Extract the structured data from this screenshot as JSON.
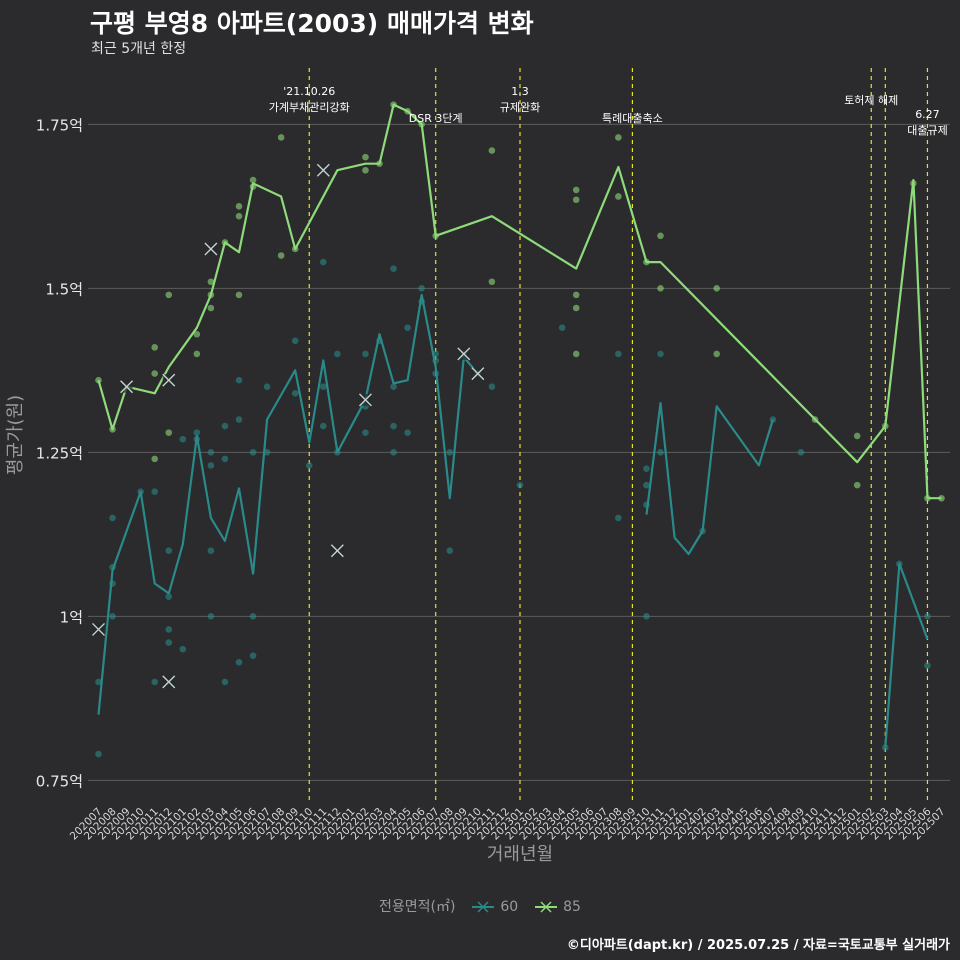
{
  "header": {
    "title": "구평 부영8 아파트(2003) 매매가격 변화",
    "subtitle": "최근 5개년 한정",
    "caption": "©디아파트(dapt.kr) / 2025.07.25 / 자료=국토교통부 실거래가"
  },
  "legend": {
    "title": "전용면적(㎡)",
    "items": [
      {
        "label": "60",
        "color": "#2a8a8a"
      },
      {
        "label": "85",
        "color": "#8edb7a"
      }
    ]
  },
  "chart_data": {
    "type": "line",
    "xlabel": "거래년월",
    "ylabel": "평균가(원)",
    "ylim": [
      0.72,
      1.845
    ],
    "yticks": [
      {
        "value": 0.75,
        "label": "0.75억"
      },
      {
        "value": 1.0,
        "label": "1억"
      },
      {
        "value": 1.25,
        "label": "1.25억"
      },
      {
        "value": 1.5,
        "label": "1.5억"
      },
      {
        "value": 1.75,
        "label": "1.75억"
      }
    ],
    "categories": [
      "202007",
      "202008",
      "202009",
      "202010",
      "202011",
      "202012",
      "202101",
      "202102",
      "202103",
      "202104",
      "202105",
      "202106",
      "202107",
      "202108",
      "202109",
      "202110",
      "202111",
      "202112",
      "202201",
      "202202",
      "202203",
      "202204",
      "202205",
      "202206",
      "202207",
      "202208",
      "202209",
      "202210",
      "202211",
      "202212",
      "202301",
      "202302",
      "202303",
      "202304",
      "202305",
      "202306",
      "202307",
      "202308",
      "202309",
      "202310",
      "202311",
      "202312",
      "202401",
      "202402",
      "202403",
      "202404",
      "202405",
      "202406",
      "202407",
      "202408",
      "202409",
      "202410",
      "202411",
      "202412",
      "202501",
      "202502",
      "202503",
      "202504",
      "202505",
      "202506",
      "202507"
    ],
    "annotations": [
      {
        "x": 15.0,
        "lines": [
          "'21.10.26",
          "가계부채관리강화"
        ],
        "row": 0
      },
      {
        "x": 24.0,
        "lines": [
          "DSR 3단계"
        ],
        "row": 2
      },
      {
        "x": 30.0,
        "lines": [
          "1.3",
          "규제완화"
        ],
        "row": 0
      },
      {
        "x": 38.0,
        "lines": [
          "특례대출축소"
        ],
        "row": 2
      },
      {
        "x": 55.0,
        "lines": [
          "토허제 해제"
        ],
        "row": 1
      },
      {
        "x": 56.0,
        "lines": [],
        "row": 1
      },
      {
        "x": 59.0,
        "lines": [
          "6.27",
          "대출규제"
        ],
        "row": 3
      }
    ],
    "series": [
      {
        "name": "60",
        "color": "#2a8a8a",
        "line": [
          [
            0,
            0.85
          ],
          [
            1,
            1.07
          ],
          [
            3,
            1.19
          ],
          [
            4,
            1.05
          ],
          [
            5,
            1.035
          ],
          [
            6,
            1.11
          ],
          [
            7,
            1.275
          ],
          [
            8,
            1.15
          ],
          [
            9,
            1.115
          ],
          [
            10,
            1.195
          ],
          [
            11,
            1.065
          ],
          [
            12,
            1.3
          ],
          [
            14,
            1.375
          ],
          [
            15,
            1.265
          ],
          [
            16,
            1.39
          ],
          [
            17,
            1.25
          ],
          [
            19,
            1.33
          ],
          [
            20,
            1.43
          ],
          [
            21,
            1.355
          ],
          [
            22,
            1.36
          ],
          [
            23,
            1.49
          ],
          [
            24,
            1.38
          ],
          [
            25,
            1.18
          ],
          [
            26,
            1.395
          ],
          [
            27,
            1.37
          ],
          [
            39,
            1.155
          ],
          [
            40,
            1.325
          ],
          [
            41,
            1.12
          ],
          [
            42,
            1.095
          ],
          [
            43,
            1.13
          ],
          [
            44,
            1.32
          ],
          [
            47,
            1.23
          ],
          [
            48,
            1.3
          ],
          [
            56,
            0.8
          ],
          [
            57,
            1.08
          ],
          [
            59,
            0.965
          ]
        ],
        "breaks": [
          25,
          29,
          31,
          33
        ],
        "points": [
          [
            0,
            0.79
          ],
          [
            0,
            0.9
          ],
          [
            1,
            1.0
          ],
          [
            1,
            1.05
          ],
          [
            1,
            1.15
          ],
          [
            1,
            1.075
          ],
          [
            3,
            1.19
          ],
          [
            4,
            1.19
          ],
          [
            4,
            0.9
          ],
          [
            5,
            1.03
          ],
          [
            5,
            0.98
          ],
          [
            5,
            0.96
          ],
          [
            5,
            1.1
          ],
          [
            6,
            0.95
          ],
          [
            6,
            1.27
          ],
          [
            7,
            1.28
          ],
          [
            7,
            1.27
          ],
          [
            8,
            1.25
          ],
          [
            8,
            1.23
          ],
          [
            8,
            1.1
          ],
          [
            8,
            1.0
          ],
          [
            9,
            1.29
          ],
          [
            9,
            1.24
          ],
          [
            9,
            0.9
          ],
          [
            10,
            1.36
          ],
          [
            10,
            1.3
          ],
          [
            10,
            0.93
          ],
          [
            11,
            1.0
          ],
          [
            11,
            0.94
          ],
          [
            11,
            1.25
          ],
          [
            12,
            1.25
          ],
          [
            12,
            1.35
          ],
          [
            14,
            1.42
          ],
          [
            14,
            1.34
          ],
          [
            15,
            1.23
          ],
          [
            16,
            1.54
          ],
          [
            16,
            1.35
          ],
          [
            16,
            1.29
          ],
          [
            17,
            1.4
          ],
          [
            17,
            1.25
          ],
          [
            19,
            1.4
          ],
          [
            19,
            1.28
          ],
          [
            19,
            1.32
          ],
          [
            20,
            1.42
          ],
          [
            21,
            1.53
          ],
          [
            21,
            1.35
          ],
          [
            21,
            1.29
          ],
          [
            21,
            1.25
          ],
          [
            22,
            1.44
          ],
          [
            22,
            1.28
          ],
          [
            23,
            1.5
          ],
          [
            23,
            1.48
          ],
          [
            24,
            1.4
          ],
          [
            24,
            1.37
          ],
          [
            24,
            1.39
          ],
          [
            25,
            1.25
          ],
          [
            25,
            1.1
          ],
          [
            26,
            1.4
          ],
          [
            27,
            1.37
          ],
          [
            28,
            1.35
          ],
          [
            30,
            1.2
          ],
          [
            33,
            1.44
          ],
          [
            37,
            1.15
          ],
          [
            37,
            1.4
          ],
          [
            39,
            1.0
          ],
          [
            39,
            1.225
          ],
          [
            39,
            1.2
          ],
          [
            39,
            1.17
          ],
          [
            40,
            1.4
          ],
          [
            40,
            1.25
          ],
          [
            43,
            1.13
          ],
          [
            48,
            1.3
          ],
          [
            50,
            1.25
          ],
          [
            56,
            0.8
          ],
          [
            57,
            1.08
          ],
          [
            59,
            1.0
          ],
          [
            59,
            0.925
          ]
        ],
        "crosses": [
          [
            0,
            0.98
          ],
          [
            5,
            0.9
          ],
          [
            17,
            1.1
          ],
          [
            19,
            1.33
          ],
          [
            26,
            1.4
          ],
          [
            27,
            1.37
          ]
        ]
      },
      {
        "name": "85",
        "color": "#8edb7a",
        "line": [
          [
            0,
            1.36
          ],
          [
            1,
            1.285
          ],
          [
            2,
            1.35
          ],
          [
            4,
            1.34
          ],
          [
            5,
            1.38
          ],
          [
            7,
            1.44
          ],
          [
            8,
            1.49
          ],
          [
            9,
            1.57
          ],
          [
            10,
            1.555
          ],
          [
            11,
            1.66
          ],
          [
            13,
            1.64
          ],
          [
            14,
            1.56
          ],
          [
            17,
            1.68
          ],
          [
            19,
            1.69
          ],
          [
            20,
            1.69
          ],
          [
            21,
            1.78
          ],
          [
            22,
            1.77
          ],
          [
            23,
            1.75
          ],
          [
            24,
            1.58
          ],
          [
            28,
            1.61
          ],
          [
            34,
            1.53
          ],
          [
            37,
            1.685
          ],
          [
            39,
            1.54
          ],
          [
            40,
            1.54
          ],
          [
            54,
            1.235
          ],
          [
            56,
            1.29
          ],
          [
            58,
            1.665
          ],
          [
            59,
            1.18
          ],
          [
            60,
            1.18
          ]
        ],
        "breaks": [],
        "points": [
          [
            0,
            1.36
          ],
          [
            1,
            1.285
          ],
          [
            4,
            1.41
          ],
          [
            4,
            1.37
          ],
          [
            4,
            1.24
          ],
          [
            5,
            1.49
          ],
          [
            5,
            1.28
          ],
          [
            7,
            1.43
          ],
          [
            7,
            1.4
          ],
          [
            8,
            1.51
          ],
          [
            8,
            1.47
          ],
          [
            8,
            1.49
          ],
          [
            9,
            1.57
          ],
          [
            10,
            1.625
          ],
          [
            10,
            1.61
          ],
          [
            10,
            1.49
          ],
          [
            11,
            1.665
          ],
          [
            11,
            1.655
          ],
          [
            13,
            1.73
          ],
          [
            13,
            1.55
          ],
          [
            14,
            1.56
          ],
          [
            19,
            1.68
          ],
          [
            19,
            1.7
          ],
          [
            20,
            1.69
          ],
          [
            21,
            1.78
          ],
          [
            22,
            1.77
          ],
          [
            23,
            1.75
          ],
          [
            24,
            1.58
          ],
          [
            28,
            1.71
          ],
          [
            28,
            1.51
          ],
          [
            34,
            1.65
          ],
          [
            34,
            1.635
          ],
          [
            34,
            1.49
          ],
          [
            34,
            1.47
          ],
          [
            34,
            1.4
          ],
          [
            37,
            1.73
          ],
          [
            37,
            1.64
          ],
          [
            39,
            1.54
          ],
          [
            40,
            1.58
          ],
          [
            40,
            1.5
          ],
          [
            44,
            1.5
          ],
          [
            44,
            1.4
          ],
          [
            51,
            1.3
          ],
          [
            54,
            1.275
          ],
          [
            54,
            1.2
          ],
          [
            56,
            1.29
          ],
          [
            58,
            1.66
          ],
          [
            59,
            1.18
          ],
          [
            60,
            1.18
          ]
        ],
        "crosses": [
          [
            2,
            1.35
          ],
          [
            5,
            1.36
          ],
          [
            8,
            1.56
          ],
          [
            16,
            1.68
          ]
        ]
      }
    ]
  }
}
